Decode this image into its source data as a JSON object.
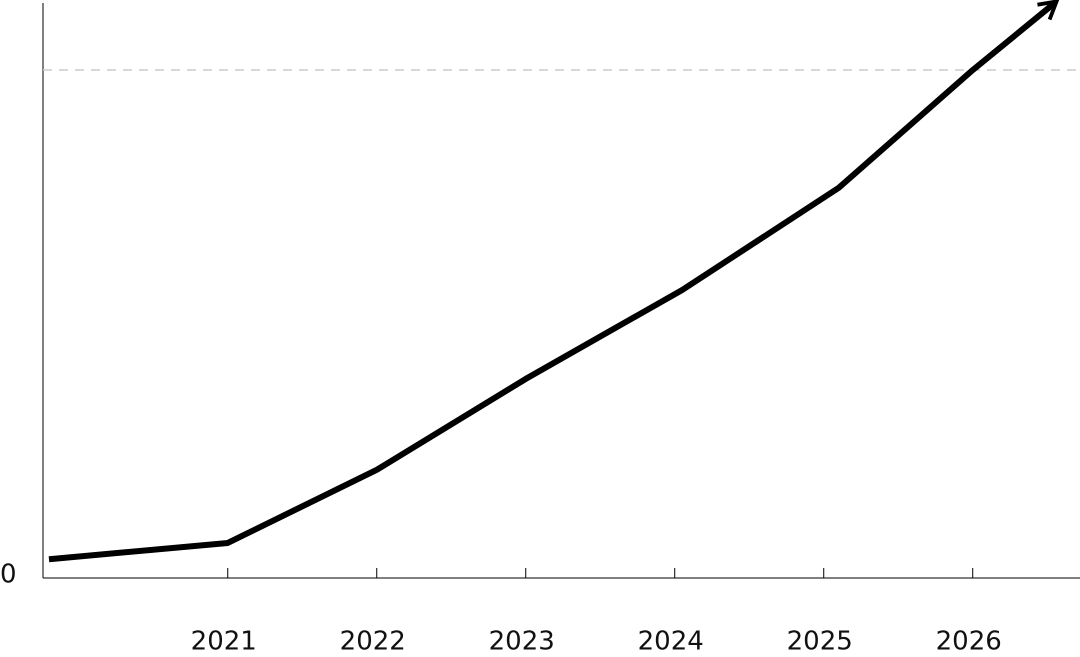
{
  "chart_data": {
    "type": "line",
    "x": [
      2019.8,
      2021,
      2022,
      2023,
      2024.05,
      2025.1,
      2026,
      2026.55
    ],
    "values": [
      3.7,
      6.9,
      21.3,
      39.2,
      56.7,
      76.8,
      100,
      113.2
    ],
    "color": "#000000",
    "xlim": [
      2019.76,
      2026.72
    ],
    "xticks": [
      2021,
      2022,
      2023,
      2024,
      2025,
      2026
    ],
    "ylim": [
      0,
      113.2
    ],
    "yticks": [
      0
    ],
    "reference_line": 100,
    "end_arrow": true
  }
}
